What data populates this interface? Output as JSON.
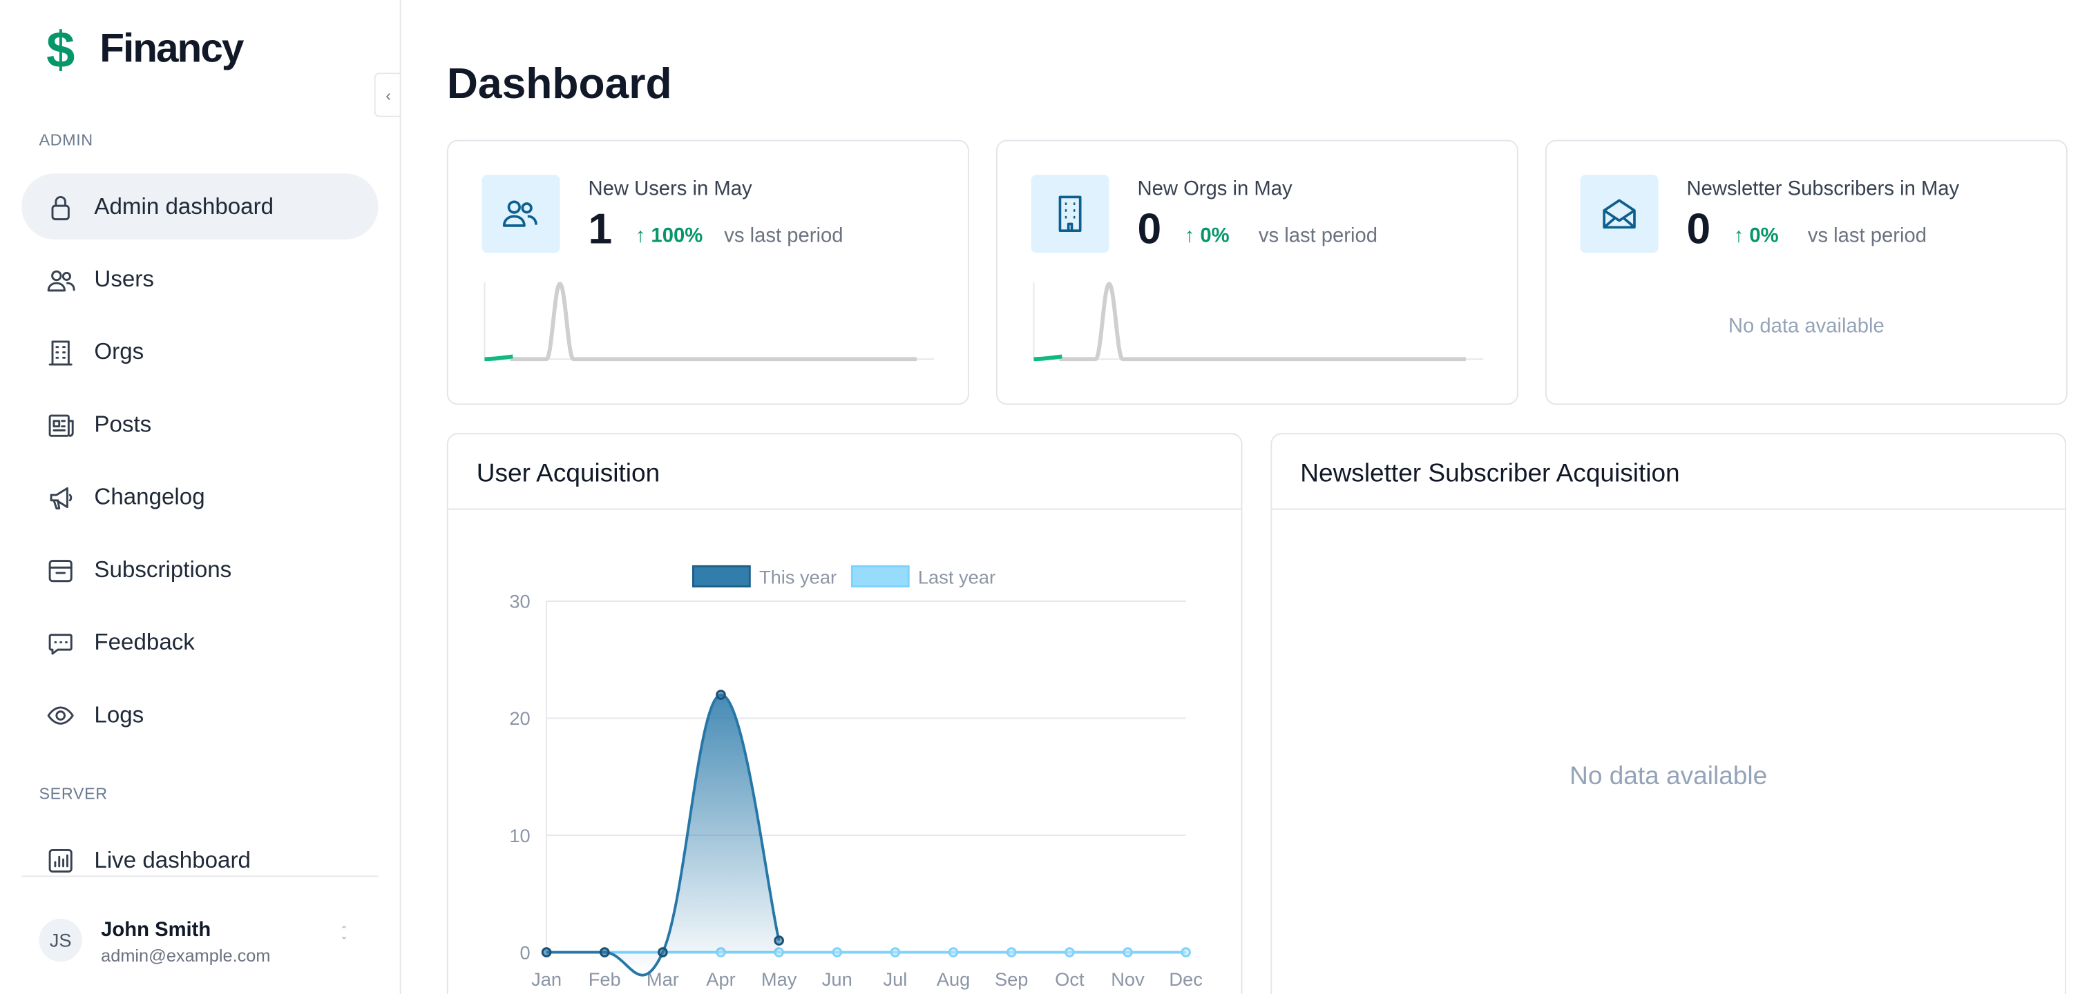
{
  "brand": "Financy",
  "sidebar": {
    "sections": [
      {
        "label": "ADMIN",
        "items": [
          "Admin dashboard",
          "Users",
          "Orgs",
          "Posts",
          "Changelog",
          "Subscriptions",
          "Feedback",
          "Logs"
        ]
      },
      {
        "label": "SERVER",
        "items": [
          "Live dashboard"
        ]
      }
    ],
    "user": {
      "initials": "JS",
      "name": "John Smith",
      "email": "admin@example.com"
    }
  },
  "page_title": "Dashboard",
  "stats": [
    {
      "label": "New Users in May",
      "value": 1,
      "change": "100%",
      "comparison": "vs last period"
    },
    {
      "label": "New Orgs in May",
      "value": 0,
      "change": "0%",
      "comparison": "vs last period"
    },
    {
      "label": "Newsletter Subscribers in May",
      "value": 0,
      "change": "0%",
      "comparison": "vs last period",
      "empty": "No data available"
    }
  ],
  "chart_data": [
    {
      "type": "line",
      "title": "User Acquisition",
      "categories": [
        "Jan",
        "Feb",
        "Mar",
        "Apr",
        "May",
        "Jun",
        "Jul",
        "Aug",
        "Sep",
        "Oct",
        "Nov",
        "Dec"
      ],
      "series": [
        {
          "name": "This year",
          "color": "#2677a8",
          "values": [
            0,
            0,
            0,
            22,
            1,
            null,
            null,
            null,
            null,
            null,
            null,
            null
          ]
        },
        {
          "name": "Last year",
          "color": "#7dd3fc",
          "values": [
            0,
            0,
            0,
            0,
            0,
            0,
            0,
            0,
            0,
            0,
            0,
            0
          ]
        }
      ],
      "ylim": [
        0,
        30
      ],
      "yticks": [
        0,
        10,
        20,
        30
      ],
      "grid": true
    },
    {
      "type": "line",
      "title": "Newsletter Subscriber Acquisition",
      "empty": "No data available"
    }
  ]
}
